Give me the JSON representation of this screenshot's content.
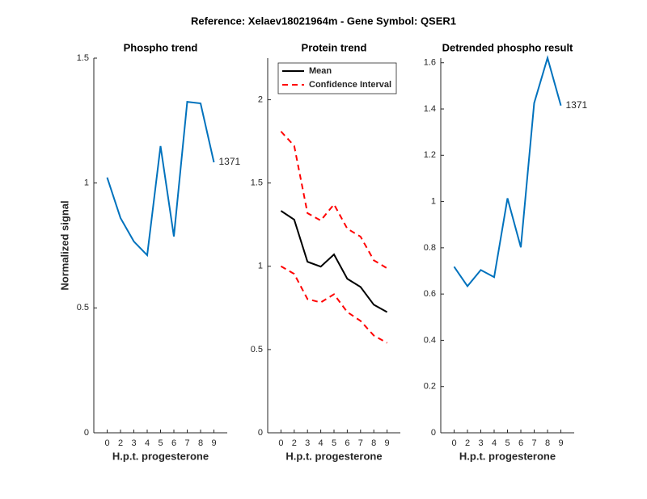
{
  "title": "Reference:  Xelaev18021964m - Gene Symbol:  QSER1",
  "chart_data": [
    {
      "type": "line",
      "title": "Phospho trend",
      "x_label": "H.p.t. progesterone",
      "y_label": "Normalized signal",
      "categories": [
        "0",
        "2",
        "3",
        "4",
        "5",
        "6",
        "7",
        "8",
        "9"
      ],
      "series": [
        {
          "name": "1371",
          "color": "#0072bd",
          "values": [
            1.022,
            0.86,
            0.766,
            0.711,
            1.148,
            0.786,
            1.325,
            1.319,
            1.083
          ]
        }
      ],
      "ylim": [
        0,
        1.5
      ],
      "yticks": [
        0,
        0.5,
        1,
        1.5
      ]
    },
    {
      "type": "line",
      "title": "Protein trend",
      "x_label": "H.p.t. progesterone",
      "categories": [
        "0",
        "2",
        "3",
        "4",
        "5",
        "6",
        "7",
        "8",
        "9"
      ],
      "series": [
        {
          "name": "Mean",
          "color": "#000000",
          "values": [
            1.333,
            1.28,
            1.027,
            0.998,
            1.071,
            0.925,
            0.876,
            0.769,
            0.725
          ]
        },
        {
          "name": "Confidence Interval",
          "color": "#ff0000",
          "style": "dashed",
          "upper": [
            1.81,
            1.723,
            1.319,
            1.275,
            1.372,
            1.226,
            1.178,
            1.036,
            0.988
          ],
          "lower": [
            1.0,
            0.954,
            0.803,
            0.783,
            0.832,
            0.725,
            0.672,
            0.584,
            0.54
          ]
        }
      ],
      "legend": "upper left",
      "ylim": [
        0,
        2.25
      ],
      "yticks": [
        0,
        0.5,
        1,
        1.5,
        2
      ]
    },
    {
      "type": "line",
      "title": "Detrended phospho result",
      "x_label": "H.p.t. progesterone",
      "categories": [
        "0",
        "2",
        "3",
        "4",
        "5",
        "6",
        "7",
        "8",
        "9"
      ],
      "series": [
        {
          "name": "1371",
          "color": "#0072bd",
          "values": [
            0.718,
            0.634,
            0.704,
            0.673,
            1.014,
            0.802,
            1.426,
            1.621,
            1.415
          ]
        }
      ],
      "ylim": [
        0,
        1.62
      ],
      "yticks": [
        0,
        0.2,
        0.4,
        0.6,
        0.8,
        1,
        1.2,
        1.4,
        1.6
      ]
    }
  ]
}
